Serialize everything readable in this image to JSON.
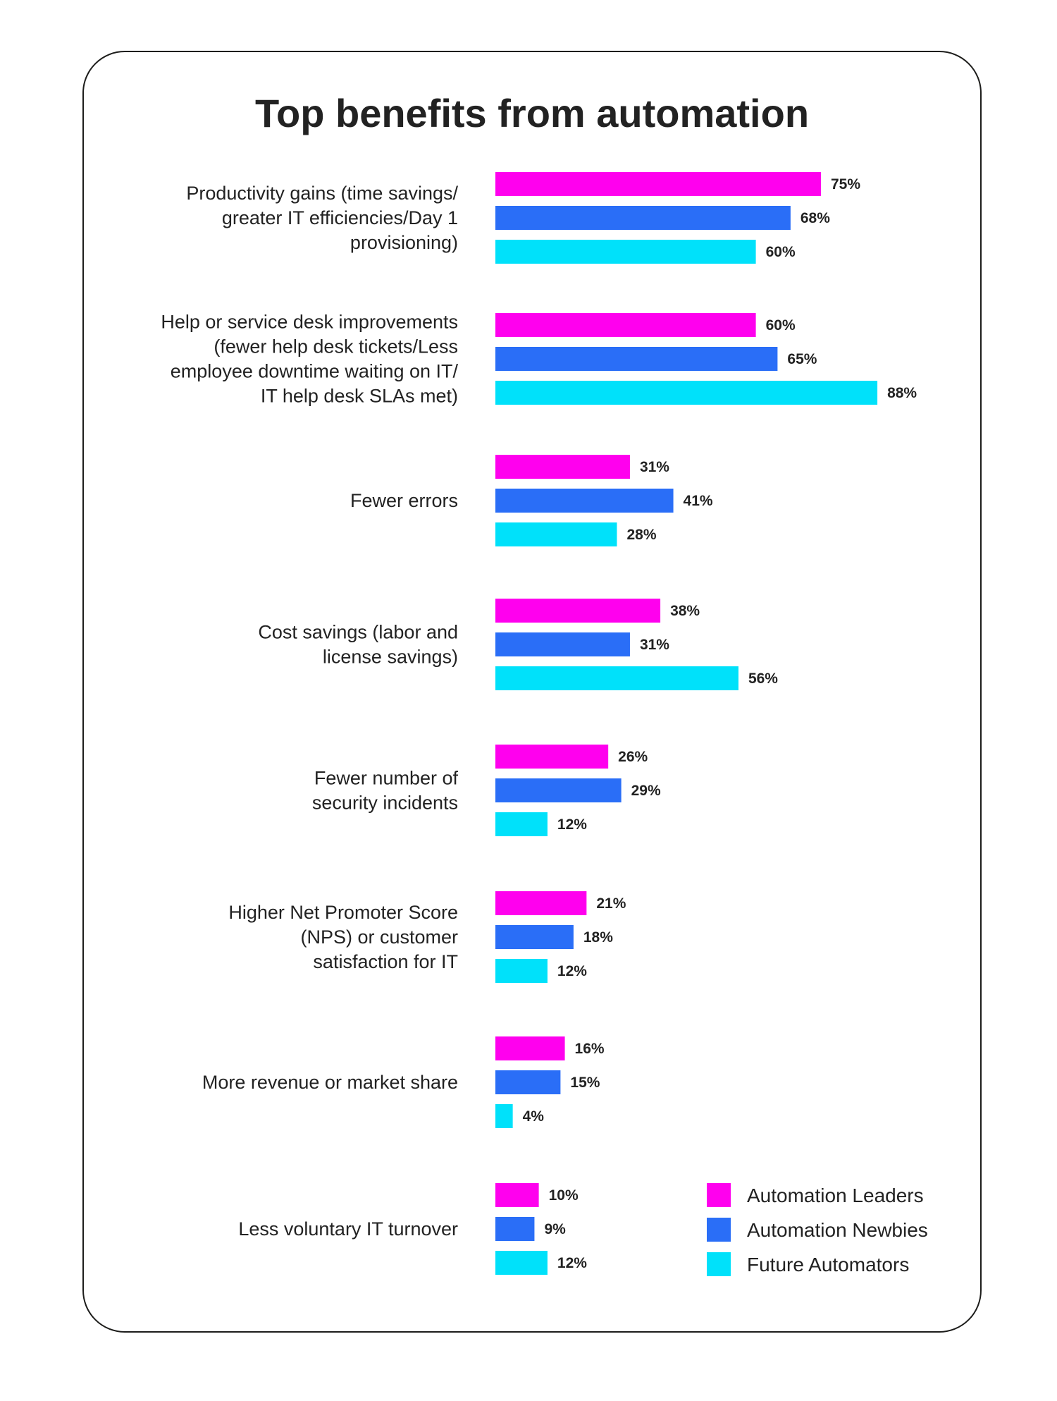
{
  "chart_data": {
    "type": "bar",
    "orientation": "horizontal",
    "title": "Top benefits from automation",
    "unit": "%",
    "categories": [
      [
        "Productivity gains (time savings/",
        "greater IT efficiencies/Day 1",
        "provisioning)"
      ],
      [
        "Help or service desk improvements",
        "(fewer help desk tickets/Less",
        "employee downtime waiting on IT/",
        "IT help desk SLAs met)"
      ],
      [
        "Fewer errors"
      ],
      [
        "Cost savings (labor and",
        "license savings)"
      ],
      [
        "Fewer number of",
        "security incidents"
      ],
      [
        "Higher Net Promoter Score",
        "(NPS) or customer",
        "satisfaction for IT"
      ],
      [
        "More revenue or market share"
      ],
      [
        "Less voluntary IT turnover"
      ]
    ],
    "series": [
      {
        "name": "Automation Leaders",
        "color": "#ff00ee",
        "values": [
          75,
          60,
          31,
          38,
          26,
          21,
          16,
          10
        ]
      },
      {
        "name": "Automation Newbies",
        "color": "#2a6ef7",
        "values": [
          68,
          65,
          41,
          31,
          29,
          18,
          15,
          9
        ]
      },
      {
        "name": "Future Automators",
        "color": "#00e1fa",
        "values": [
          60,
          88,
          28,
          56,
          12,
          12,
          4,
          12
        ]
      }
    ],
    "legend_position": "bottom-right",
    "grid": false
  }
}
